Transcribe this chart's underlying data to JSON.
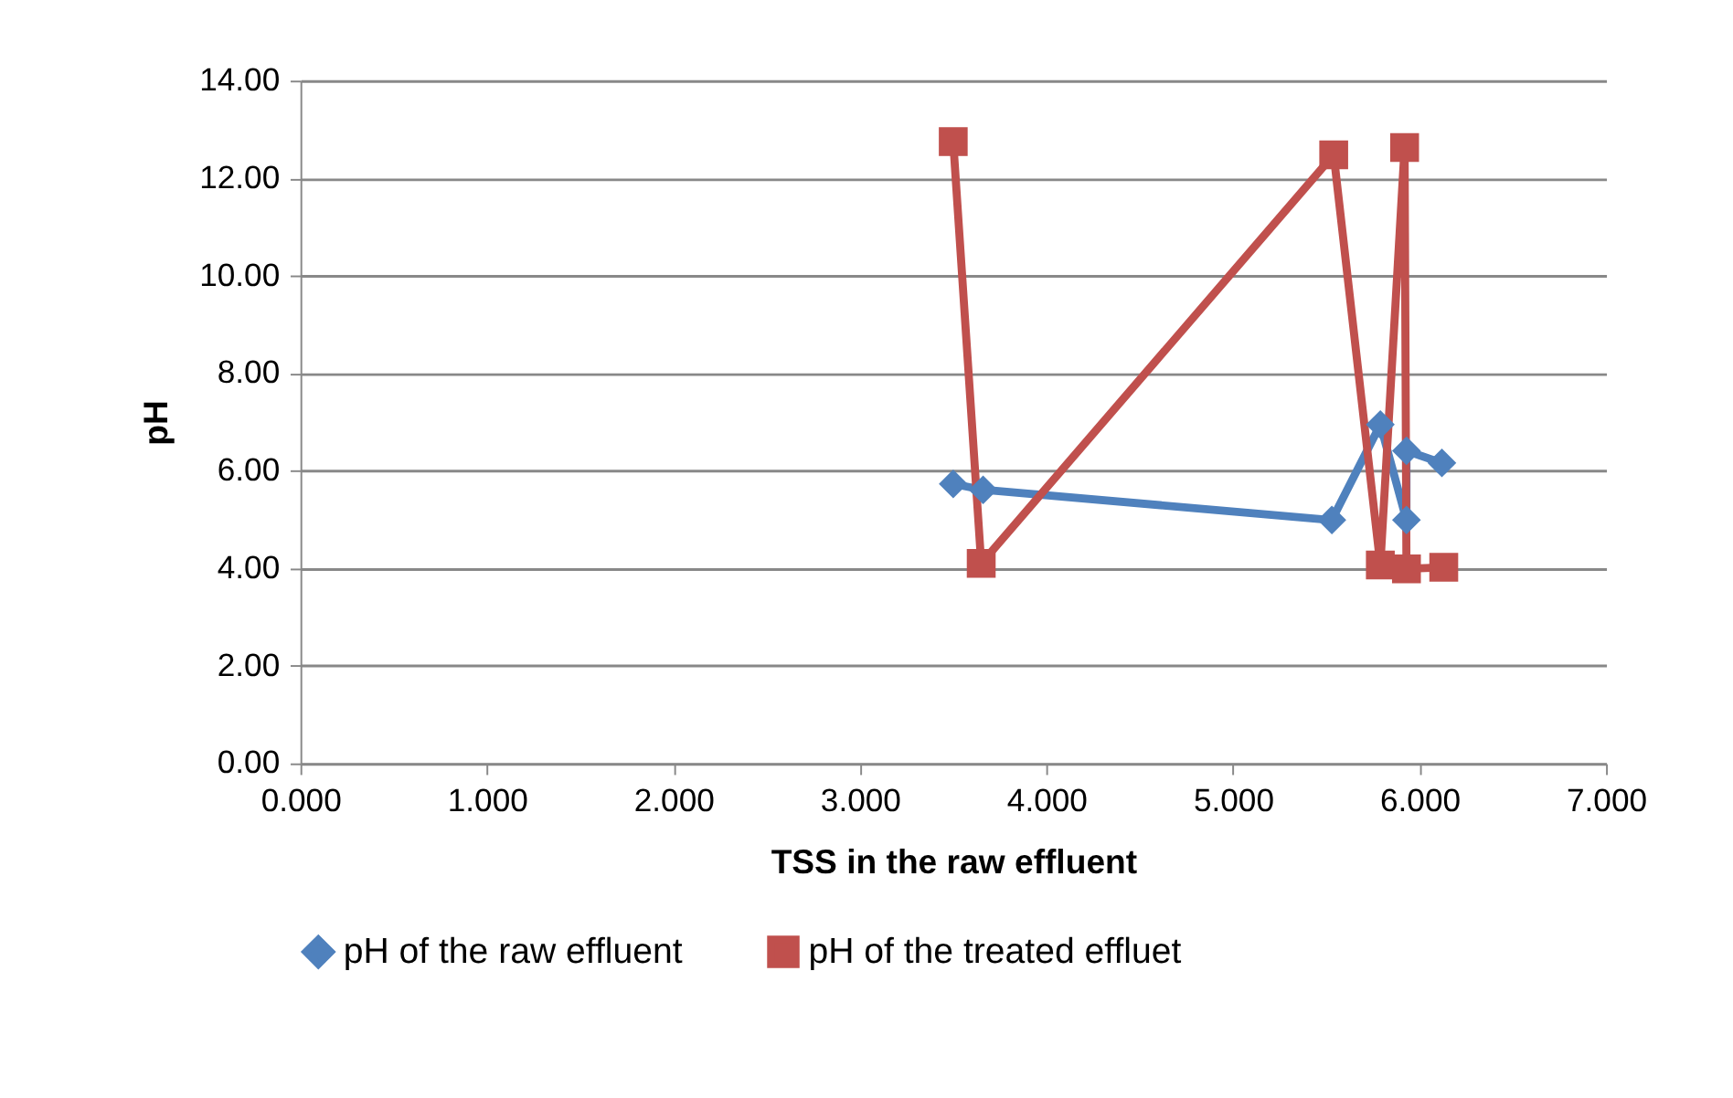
{
  "chart_data": {
    "type": "line",
    "xlabel": "TSS in the raw effluent",
    "ylabel": "pH",
    "xlim": [
      0,
      7
    ],
    "xticks": [
      {
        "value": 0,
        "label": "0.000"
      },
      {
        "value": 1,
        "label": "1.000"
      },
      {
        "value": 2,
        "label": "2.000"
      },
      {
        "value": 3,
        "label": "3.000"
      },
      {
        "value": 4,
        "label": "4.000"
      },
      {
        "value": 5,
        "label": "5.000"
      },
      {
        "value": 6,
        "label": "6.000"
      },
      {
        "value": 7,
        "label": "7.000"
      }
    ],
    "ylim": [
      0,
      14
    ],
    "yticks": [
      {
        "value": 0,
        "label": "0.00"
      },
      {
        "value": 2,
        "label": "2.00"
      },
      {
        "value": 4,
        "label": "4.00"
      },
      {
        "value": 6,
        "label": "6.00"
      },
      {
        "value": 8,
        "label": "8.00"
      },
      {
        "value": 10,
        "label": "10.00"
      },
      {
        "value": 12,
        "label": "12.00"
      },
      {
        "value": 14,
        "label": "14.00"
      }
    ],
    "grid": "y",
    "legend": "bottom",
    "line_style": "solid",
    "series": [
      {
        "name": "pH of the raw effluent",
        "color": "#4f81bd",
        "marker": "diamond",
        "x": [
          3.5,
          3.66,
          5.53,
          5.79,
          5.93,
          5.93,
          6.12
        ],
        "values": [
          5.73,
          5.61,
          4.99,
          6.95,
          4.99,
          6.41,
          6.16
        ]
      },
      {
        "name": "pH of the treated effluet",
        "color": "#c0504d",
        "marker": "square",
        "x": [
          3.5,
          3.65,
          5.54,
          5.79,
          5.92,
          5.93,
          6.13
        ],
        "values": [
          12.75,
          4.1,
          12.48,
          4.07,
          12.63,
          3.99,
          4.02
        ]
      }
    ]
  }
}
